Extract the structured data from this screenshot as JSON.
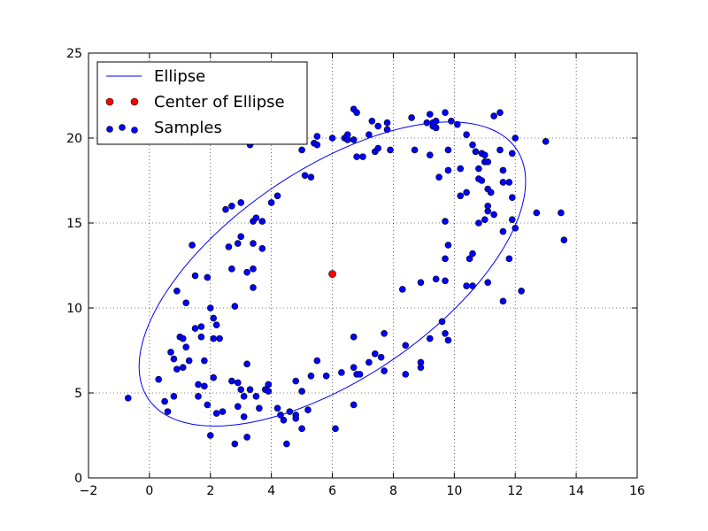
{
  "chart_data": {
    "type": "scatter",
    "xlim": [
      -2,
      16
    ],
    "ylim": [
      0,
      25
    ],
    "xticks": [
      -2,
      0,
      2,
      4,
      6,
      8,
      10,
      12,
      14,
      16
    ],
    "yticks": [
      0,
      5,
      10,
      15,
      20,
      25
    ],
    "grid": true,
    "legend_position": "top-left",
    "colors": {
      "ellipse": "#0000ff",
      "center": "#ff0000",
      "samples": "#0000ff",
      "marker_edge": "#000000"
    },
    "series": [
      {
        "name": "Ellipse",
        "kind": "line",
        "center": [
          6.0,
          12.0
        ],
        "semi_axes": [
          10.0,
          4.5
        ],
        "angle_deg": 60.0
      },
      {
        "name": "Center of Ellipse",
        "kind": "point",
        "points": [
          [
            6.0,
            12.0
          ]
        ]
      },
      {
        "name": "Samples",
        "kind": "scatter",
        "points": [
          [
            -0.7,
            4.7
          ],
          [
            0.3,
            5.8
          ],
          [
            0.5,
            4.5
          ],
          [
            0.6,
            3.9
          ],
          [
            0.7,
            7.4
          ],
          [
            0.8,
            7.0
          ],
          [
            0.8,
            4.8
          ],
          [
            0.9,
            11.0
          ],
          [
            0.9,
            6.4
          ],
          [
            1.0,
            8.3
          ],
          [
            1.1,
            8.2
          ],
          [
            1.1,
            6.5
          ],
          [
            1.2,
            7.7
          ],
          [
            1.2,
            10.3
          ],
          [
            1.3,
            6.9
          ],
          [
            1.4,
            13.7
          ],
          [
            1.5,
            11.9
          ],
          [
            1.5,
            8.8
          ],
          [
            1.6,
            5.5
          ],
          [
            1.6,
            4.8
          ],
          [
            1.7,
            8.3
          ],
          [
            1.7,
            8.9
          ],
          [
            1.8,
            6.9
          ],
          [
            1.8,
            5.4
          ],
          [
            1.9,
            11.8
          ],
          [
            1.9,
            4.3
          ],
          [
            2.0,
            10.0
          ],
          [
            2.0,
            2.5
          ],
          [
            2.1,
            9.4
          ],
          [
            2.1,
            8.2
          ],
          [
            2.1,
            5.9
          ],
          [
            2.2,
            9.0
          ],
          [
            2.2,
            3.8
          ],
          [
            2.3,
            8.2
          ],
          [
            2.4,
            3.9
          ],
          [
            2.5,
            15.8
          ],
          [
            2.6,
            13.6
          ],
          [
            2.7,
            16.0
          ],
          [
            2.7,
            12.3
          ],
          [
            2.7,
            5.7
          ],
          [
            2.8,
            10.1
          ],
          [
            2.8,
            2.0
          ],
          [
            2.9,
            13.8
          ],
          [
            2.9,
            5.6
          ],
          [
            2.9,
            4.2
          ],
          [
            3.0,
            16.2
          ],
          [
            3.0,
            14.2
          ],
          [
            3.0,
            5.2
          ],
          [
            3.1,
            4.8
          ],
          [
            3.1,
            3.6
          ],
          [
            3.2,
            12.1
          ],
          [
            3.2,
            6.7
          ],
          [
            3.2,
            2.4
          ],
          [
            3.3,
            19.6
          ],
          [
            3.3,
            5.2
          ],
          [
            3.4,
            15.1
          ],
          [
            3.4,
            13.8
          ],
          [
            3.4,
            12.3
          ],
          [
            3.4,
            11.2
          ],
          [
            3.5,
            15.3
          ],
          [
            3.5,
            4.8
          ],
          [
            3.6,
            4.1
          ],
          [
            3.7,
            15.1
          ],
          [
            3.7,
            13.5
          ],
          [
            3.8,
            5.2
          ],
          [
            3.9,
            5.5
          ],
          [
            3.9,
            5.1
          ],
          [
            4.0,
            16.2
          ],
          [
            4.2,
            16.6
          ],
          [
            4.2,
            4.1
          ],
          [
            4.3,
            3.7
          ],
          [
            4.4,
            3.4
          ],
          [
            4.5,
            2.0
          ],
          [
            4.6,
            3.9
          ],
          [
            4.8,
            5.7
          ],
          [
            4.8,
            3.7
          ],
          [
            4.8,
            3.5
          ],
          [
            5.0,
            19.3
          ],
          [
            5.0,
            5.1
          ],
          [
            5.0,
            2.9
          ],
          [
            5.1,
            17.8
          ],
          [
            5.2,
            4.0
          ],
          [
            5.3,
            17.7
          ],
          [
            5.3,
            6.0
          ],
          [
            5.4,
            19.7
          ],
          [
            5.5,
            20.1
          ],
          [
            5.5,
            19.6
          ],
          [
            5.5,
            6.9
          ],
          [
            5.8,
            6.0
          ],
          [
            6.0,
            20.0
          ],
          [
            6.1,
            2.9
          ],
          [
            6.3,
            6.2
          ],
          [
            6.4,
            20.0
          ],
          [
            6.5,
            19.9
          ],
          [
            6.5,
            20.2
          ],
          [
            6.7,
            21.7
          ],
          [
            6.7,
            19.9
          ],
          [
            6.7,
            8.3
          ],
          [
            6.7,
            6.5
          ],
          [
            6.7,
            4.3
          ],
          [
            6.8,
            21.5
          ],
          [
            6.8,
            18.9
          ],
          [
            6.8,
            6.1
          ],
          [
            6.9,
            6.1
          ],
          [
            7.0,
            18.9
          ],
          [
            7.2,
            20.2
          ],
          [
            7.2,
            6.8
          ],
          [
            7.3,
            21.0
          ],
          [
            7.4,
            19.2
          ],
          [
            7.4,
            7.3
          ],
          [
            7.5,
            20.7
          ],
          [
            7.5,
            19.4
          ],
          [
            7.6,
            7.1
          ],
          [
            7.7,
            8.5
          ],
          [
            7.7,
            6.3
          ],
          [
            7.8,
            20.9
          ],
          [
            7.8,
            20.5
          ],
          [
            7.9,
            19.3
          ],
          [
            8.3,
            11.1
          ],
          [
            8.4,
            7.8
          ],
          [
            8.4,
            6.1
          ],
          [
            8.6,
            21.2
          ],
          [
            8.7,
            19.3
          ],
          [
            8.9,
            11.5
          ],
          [
            8.9,
            6.8
          ],
          [
            8.9,
            6.5
          ],
          [
            9.1,
            20.9
          ],
          [
            9.2,
            21.4
          ],
          [
            9.2,
            19.0
          ],
          [
            9.2,
            8.2
          ],
          [
            9.3,
            20.9
          ],
          [
            9.3,
            20.7
          ],
          [
            9.4,
            20.6
          ],
          [
            9.4,
            21.0
          ],
          [
            9.4,
            11.7
          ],
          [
            9.5,
            17.7
          ],
          [
            9.6,
            9.2
          ],
          [
            9.7,
            21.5
          ],
          [
            9.7,
            15.1
          ],
          [
            9.7,
            12.9
          ],
          [
            9.7,
            11.6
          ],
          [
            9.7,
            8.5
          ],
          [
            9.8,
            19.3
          ],
          [
            9.8,
            18.1
          ],
          [
            9.8,
            13.7
          ],
          [
            9.8,
            8.1
          ],
          [
            9.9,
            21.0
          ],
          [
            10.1,
            20.8
          ],
          [
            10.2,
            18.2
          ],
          [
            10.2,
            16.6
          ],
          [
            10.4,
            20.2
          ],
          [
            10.4,
            16.8
          ],
          [
            10.4,
            11.3
          ],
          [
            10.5,
            12.9
          ],
          [
            10.6,
            13.2
          ],
          [
            10.6,
            11.3
          ],
          [
            10.6,
            19.6
          ],
          [
            10.7,
            19.2
          ],
          [
            10.8,
            17.6
          ],
          [
            10.8,
            15.0
          ],
          [
            10.8,
            18.2
          ],
          [
            10.9,
            19.1
          ],
          [
            10.9,
            17.5
          ],
          [
            11.0,
            19.0
          ],
          [
            11.0,
            18.6
          ],
          [
            11.0,
            15.2
          ],
          [
            11.1,
            18.6
          ],
          [
            11.1,
            17.0
          ],
          [
            11.1,
            16.0
          ],
          [
            11.1,
            15.7
          ],
          [
            11.1,
            11.5
          ],
          [
            11.2,
            16.8
          ],
          [
            11.3,
            21.3
          ],
          [
            11.3,
            15.5
          ],
          [
            11.5,
            21.5
          ],
          [
            11.5,
            19.3
          ],
          [
            11.6,
            18.1
          ],
          [
            11.6,
            17.4
          ],
          [
            11.6,
            14.5
          ],
          [
            11.6,
            10.4
          ],
          [
            11.8,
            12.9
          ],
          [
            11.8,
            17.4
          ],
          [
            11.9,
            19.1
          ],
          [
            11.9,
            16.5
          ],
          [
            11.9,
            15.2
          ],
          [
            12.0,
            20.0
          ],
          [
            12.0,
            14.7
          ],
          [
            12.2,
            11.0
          ],
          [
            12.7,
            15.6
          ],
          [
            13.0,
            19.8
          ],
          [
            13.5,
            15.6
          ],
          [
            13.6,
            14.0
          ]
        ]
      }
    ]
  }
}
